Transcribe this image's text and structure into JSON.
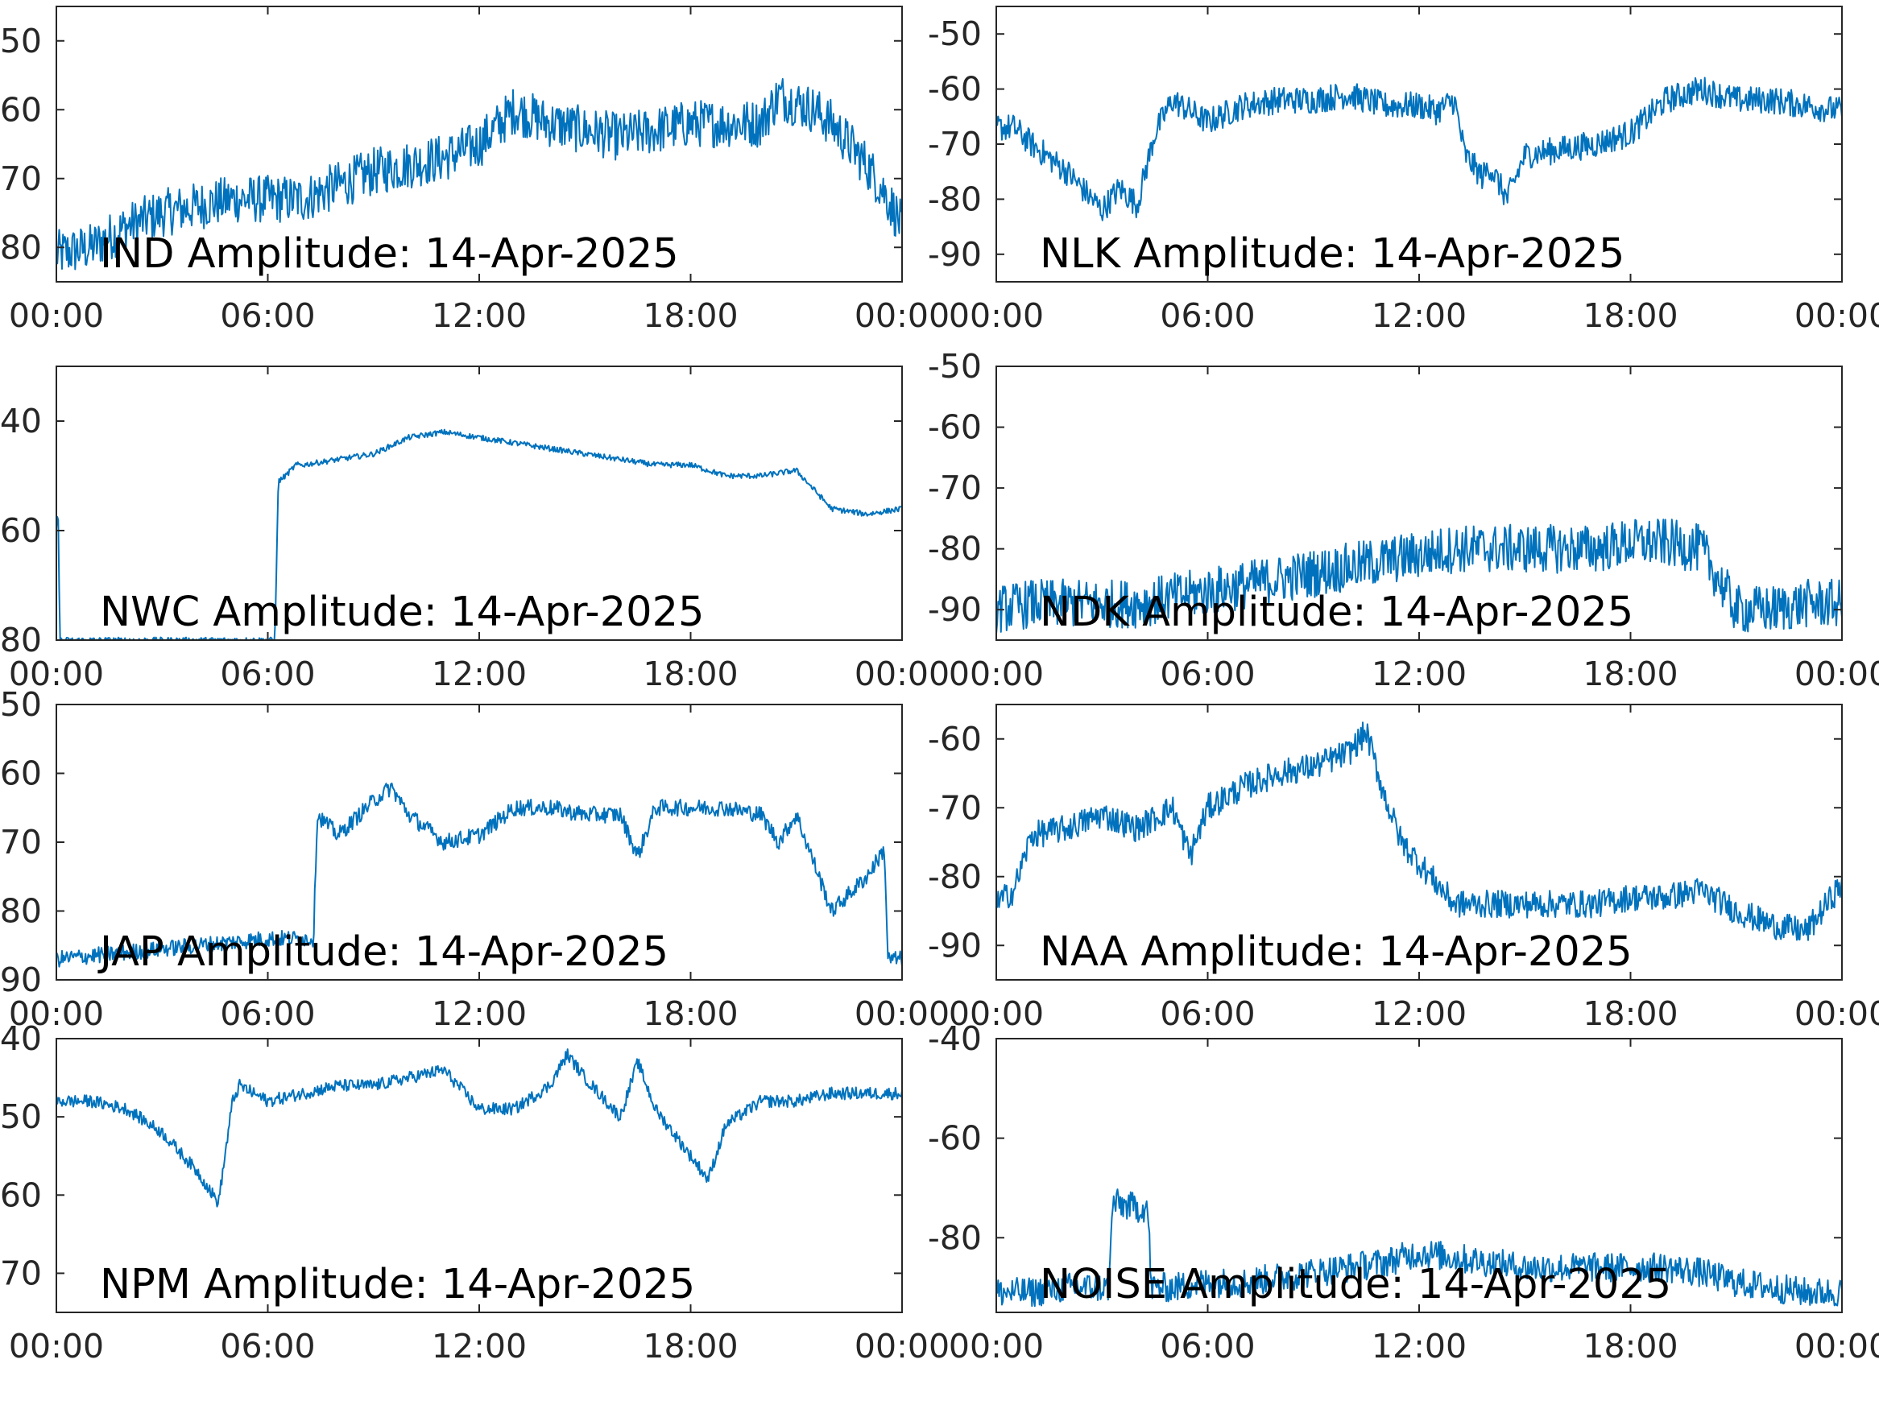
{
  "figure": {
    "background": "#ffffff",
    "trace_color": "#0072bd",
    "axis_color": "#262626"
  },
  "chart_data": [
    {
      "type": "line",
      "title": "IND Amplitude: 14-Apr-2025",
      "xticks": [
        "00:00",
        "06:00",
        "12:00",
        "18:00",
        "00:00"
      ],
      "xlim": [
        0,
        24
      ],
      "ylim": [
        -85,
        -45
      ],
      "yticks": [
        -50,
        -60,
        -70,
        -80
      ],
      "ytick_labels": [
        "50",
        "60",
        "70",
        "80"
      ],
      "series": [
        {
          "x": [
            0,
            1,
            2,
            3,
            4,
            5,
            6,
            7,
            8,
            9,
            10,
            11,
            12,
            13,
            14,
            15,
            16,
            17,
            18,
            19,
            20,
            20.5,
            21,
            21.5,
            22,
            23,
            23.5,
            24
          ],
          "y": [
            -81,
            -80,
            -77,
            -75,
            -74,
            -73,
            -73,
            -73,
            -71,
            -69,
            -68,
            -67,
            -65,
            -60,
            -62,
            -63,
            -64,
            -63,
            -62,
            -62,
            -62,
            -58,
            -59,
            -60,
            -62,
            -68,
            -72,
            -77
          ],
          "noise": 3.5
        }
      ]
    },
    {
      "type": "line",
      "title": "NLK Amplitude: 14-Apr-2025",
      "xticks": [
        "00:00",
        "06:00",
        "12:00",
        "18:00",
        "00:00"
      ],
      "xlim": [
        0,
        24
      ],
      "ylim": [
        -95,
        -45
      ],
      "yticks": [
        -50,
        -60,
        -70,
        -80,
        -90
      ],
      "ytick_labels": [
        "-50",
        "-60",
        "-70",
        "-80",
        "-90"
      ],
      "series": [
        {
          "x": [
            0,
            0.5,
            1,
            2,
            3,
            3.5,
            4,
            4.5,
            5,
            6,
            7,
            8,
            9,
            10,
            11,
            12,
            12.5,
            13,
            13.3,
            13.8,
            14,
            14.5,
            15,
            16,
            17,
            18,
            19,
            20,
            21,
            22,
            23,
            24
          ],
          "y": [
            -67,
            -67,
            -70,
            -75,
            -82,
            -78,
            -81,
            -68,
            -62,
            -66,
            -63,
            -62,
            -62,
            -61,
            -63,
            -63,
            -64,
            -62,
            -72,
            -76,
            -74,
            -80,
            -72,
            -71,
            -70,
            -68,
            -62,
            -60,
            -62,
            -62,
            -63,
            -64
          ],
          "noise": 2.5
        }
      ]
    },
    {
      "type": "line",
      "title": "NWC Amplitude: 14-Apr-2025",
      "xticks": [
        "00:00",
        "06:00",
        "12:00",
        "18:00",
        "00:00"
      ],
      "xlim": [
        0,
        24
      ],
      "ylim": [
        -80,
        -30
      ],
      "yticks": [
        -40,
        -60,
        -80
      ],
      "ytick_labels": [
        "40",
        "60",
        "80"
      ],
      "series": [
        {
          "x": [
            0,
            0.05,
            0.1,
            1,
            3,
            5,
            6.2,
            6.3,
            6.5,
            6.8,
            7,
            8,
            9,
            10,
            11,
            12,
            13,
            14,
            15,
            16,
            17,
            18,
            19,
            20,
            21,
            22,
            23,
            24
          ],
          "y": [
            -60,
            -56,
            -80,
            -80,
            -80,
            -80,
            -80,
            -51,
            -50,
            -48,
            -48,
            -47,
            -46,
            -43,
            -42,
            -43,
            -44,
            -45,
            -46,
            -47,
            -48,
            -48,
            -50,
            -50,
            -49,
            -56,
            -57,
            -56
          ],
          "noise": 0.5
        }
      ]
    },
    {
      "type": "line",
      "title": "NDK Amplitude: 14-Apr-2025",
      "xticks": [
        "00:00",
        "06:00",
        "12:00",
        "18:00",
        "00:00"
      ],
      "xlim": [
        0,
        24
      ],
      "ylim": [
        -95,
        -50
      ],
      "yticks": [
        -50,
        -60,
        -70,
        -80,
        -90
      ],
      "ytick_labels": [
        "-50",
        "-60",
        "-70",
        "-80",
        "-90"
      ],
      "series": [
        {
          "x": [
            0,
            1,
            2,
            3,
            4,
            5,
            6,
            7,
            8,
            9,
            10,
            11,
            12,
            13,
            14,
            15,
            16,
            17,
            18,
            19,
            20,
            21,
            22,
            23,
            24
          ],
          "y": [
            -90,
            -89,
            -89,
            -89,
            -89,
            -88,
            -87,
            -86,
            -85,
            -84,
            -83,
            -82,
            -81,
            -80,
            -80,
            -80,
            -80,
            -80,
            -79,
            -79,
            -80,
            -90,
            -90,
            -89,
            -89
          ],
          "noise": 4
        }
      ]
    },
    {
      "type": "line",
      "title": "JAP Amplitude: 14-Apr-2025",
      "xticks": [
        "00:00",
        "06:00",
        "12:00",
        "18:00",
        "00:00"
      ],
      "xlim": [
        0,
        24
      ],
      "ylim": [
        -90,
        -50
      ],
      "yticks": [
        -50,
        -60,
        -70,
        -80,
        -90
      ],
      "ytick_labels": [
        "50",
        "60",
        "70",
        "80",
        "90"
      ],
      "series": [
        {
          "x": [
            0,
            2,
            4,
            6,
            7.3,
            7.4,
            8,
            9,
            9.5,
            10,
            11,
            12,
            13,
            14,
            15,
            16,
            16.5,
            17,
            18,
            19,
            20,
            20.5,
            21,
            22,
            23,
            23.5,
            23.6,
            24
          ],
          "y": [
            -87,
            -86,
            -85,
            -84,
            -84,
            -66,
            -69,
            -64,
            -62,
            -66,
            -70,
            -69,
            -65,
            -65,
            -66,
            -66,
            -72,
            -65,
            -65,
            -65,
            -66,
            -70,
            -66,
            -80,
            -75,
            -71,
            -87,
            -87
          ],
          "noise": 1.2
        }
      ]
    },
    {
      "type": "line",
      "title": "NAA Amplitude: 14-Apr-2025",
      "xticks": [
        "00:00",
        "06:00",
        "12:00",
        "18:00",
        "00:00"
      ],
      "xlim": [
        0,
        24
      ],
      "ylim": [
        -95,
        -55
      ],
      "yticks": [
        -60,
        -70,
        -80,
        -90
      ],
      "ytick_labels": [
        "-60",
        "-70",
        "-80",
        "-90"
      ],
      "series": [
        {
          "x": [
            0,
            0.5,
            1,
            2,
            3,
            4,
            5,
            5.5,
            6,
            7,
            8,
            9,
            10,
            10.5,
            11,
            11.5,
            12,
            13,
            14,
            15,
            16,
            17,
            18,
            19,
            20,
            21,
            22,
            23,
            24
          ],
          "y": [
            -84,
            -82,
            -74,
            -73,
            -71,
            -73,
            -70,
            -77,
            -70,
            -67,
            -65,
            -64,
            -62,
            -59,
            -68,
            -75,
            -78,
            -84,
            -84,
            -84,
            -84,
            -84,
            -83,
            -83,
            -82,
            -85,
            -87,
            -88,
            -81
          ],
          "noise": 2
        }
      ]
    },
    {
      "type": "line",
      "title": "NPM Amplitude: 14-Apr-2025",
      "xticks": [
        "00:00",
        "06:00",
        "12:00",
        "18:00",
        "00:00"
      ],
      "xlim": [
        0,
        24
      ],
      "ylim": [
        -75,
        -40
      ],
      "yticks": [
        -40,
        -50,
        -60,
        -70
      ],
      "ytick_labels": [
        "40",
        "50",
        "60",
        "70"
      ],
      "series": [
        {
          "x": [
            0,
            1,
            2,
            3,
            4,
            4.6,
            5,
            5.2,
            6,
            7,
            8,
            9,
            10,
            11,
            12,
            13,
            14,
            14.5,
            15,
            16,
            16.5,
            17,
            18,
            18.5,
            19,
            20,
            21,
            22,
            23,
            24
          ],
          "y": [
            -48,
            -48,
            -49,
            -52,
            -57,
            -61,
            -48,
            -46,
            -48,
            -47,
            -46,
            -46,
            -45,
            -44,
            -49,
            -49,
            -46,
            -42,
            -45,
            -50,
            -43,
            -49,
            -55,
            -58,
            -51,
            -48,
            -48,
            -47,
            -47,
            -47
          ],
          "noise": 0.8
        }
      ]
    },
    {
      "type": "line",
      "title": "NOISE Amplitude: 14-Apr-2025",
      "xticks": [
        "00:00",
        "06:00",
        "12:00",
        "18:00",
        "00:00"
      ],
      "xlim": [
        0,
        24
      ],
      "ylim": [
        -95,
        -40
      ],
      "yticks": [
        -40,
        -60,
        -80
      ],
      "ytick_labels": [
        "-40",
        "-60",
        "-80"
      ],
      "series": [
        {
          "x": [
            0,
            1,
            2,
            3,
            3.2,
            3.3,
            4,
            4.3,
            4.4,
            5,
            6,
            7,
            8,
            9,
            10,
            11,
            12,
            13,
            14,
            15,
            16,
            17,
            18,
            19,
            20,
            21,
            22,
            23,
            24
          ],
          "y": [
            -91,
            -91,
            -90,
            -90,
            -90,
            -73,
            -74,
            -74,
            -90,
            -90,
            -89,
            -89,
            -88,
            -87,
            -86,
            -85,
            -83,
            -84,
            -85,
            -86,
            -86,
            -86,
            -86,
            -86,
            -87,
            -89,
            -90,
            -91,
            -91
          ],
          "noise": 3
        }
      ]
    }
  ]
}
